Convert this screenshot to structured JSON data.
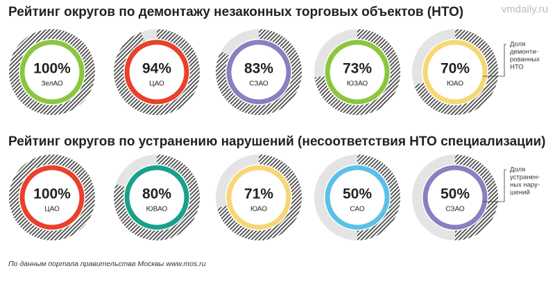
{
  "watermark": "vmdaily.ru",
  "source": "По данным портала правительства Москвы www.mos.ru",
  "chart_data": [
    {
      "type": "donut",
      "title": "Рейтинг округов по демонтажу незаконных торговых объектов (НТО)",
      "categories": [
        "ЗелАО",
        "ЦАО",
        "СЗАО",
        "ЮЗАО",
        "ЮАО"
      ],
      "values": [
        100,
        94,
        83,
        73,
        70
      ],
      "value_labels": [
        "100%",
        "94%",
        "83%",
        "73%",
        "70%"
      ],
      "colors": [
        "#8cc63f",
        "#e8412c",
        "#8a7fc0",
        "#8cc63f",
        "#f7d774"
      ],
      "note": [
        "Доля",
        "демонти-",
        "рованных",
        "НТО"
      ]
    },
    {
      "type": "donut",
      "title": "Рейтинг округов по устранению нарушений (несоответствия НТО специализации)",
      "categories": [
        "ЦАО",
        "ЮВАО",
        "ЮАО",
        "САО",
        "СЗАО"
      ],
      "values": [
        100,
        80,
        71,
        50,
        50
      ],
      "value_labels": [
        "100%",
        "80%",
        "71%",
        "50%",
        "50%"
      ],
      "colors": [
        "#e8412c",
        "#1aa08a",
        "#f7d774",
        "#5bc0e8",
        "#8a7fc0"
      ],
      "note": [
        "Доля",
        "устранен-",
        "ных нару-",
        "шений"
      ]
    }
  ]
}
